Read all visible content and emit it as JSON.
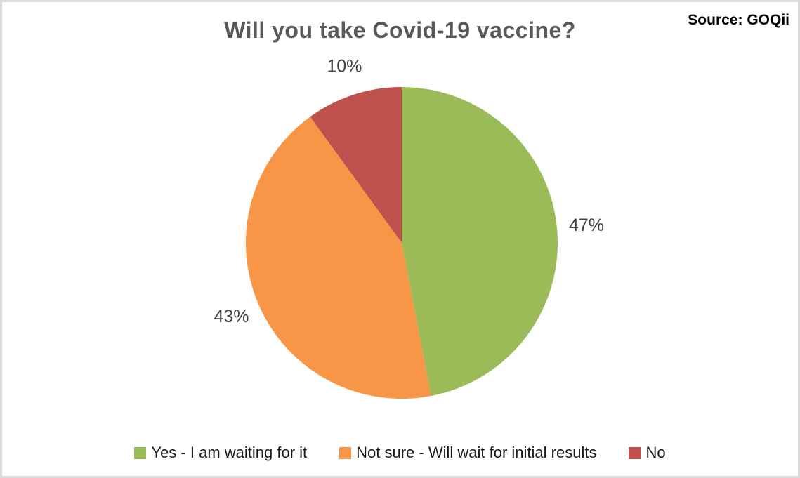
{
  "chart_data": {
    "type": "pie",
    "title": "Will you take Covid-19 vaccine?",
    "source": "Source: GOQii",
    "start_angle_deg": 0,
    "direction": "clockwise",
    "legend_position": "bottom",
    "slices": [
      {
        "label": "Yes - I am waiting for it",
        "value": 47,
        "display": "47%",
        "color": "#9BBB59"
      },
      {
        "label": "Not sure - Will wait for initial results",
        "value": 43,
        "display": "43%",
        "color": "#F79646"
      },
      {
        "label": "No",
        "value": 10,
        "display": "10%",
        "color": "#C0504D"
      }
    ],
    "colors": {
      "title_text": "#595959",
      "slice_label_text": "#404040",
      "legend_text": "#1a1a1a",
      "frame_border": "#d9d9d9"
    }
  }
}
